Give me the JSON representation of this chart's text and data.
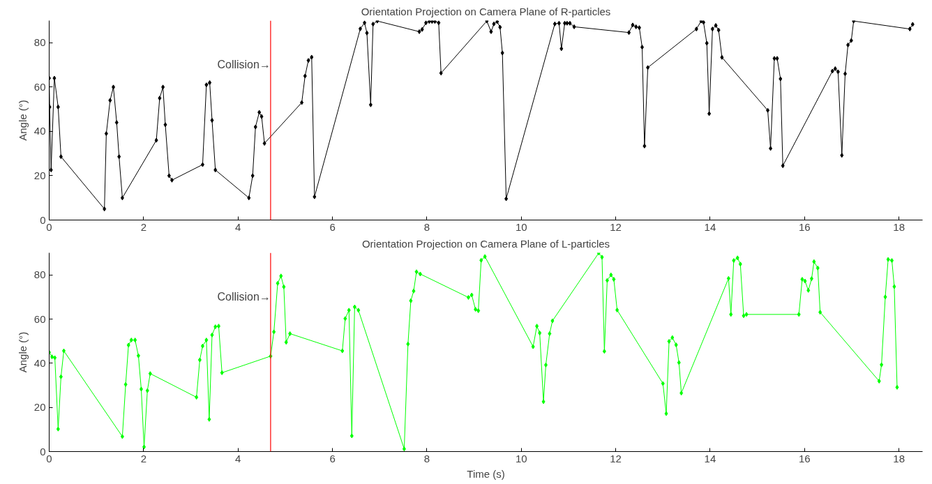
{
  "chart_data": [
    {
      "type": "line",
      "title": "Orientation Projection on Camera Plane of R-particles",
      "ylabel": "Angle (°)",
      "x": [
        0,
        0.01,
        0.04,
        0.11,
        0.19,
        0.25,
        1.17,
        1.21,
        1.29,
        1.36,
        1.43,
        1.48,
        1.55,
        2.27,
        2.34,
        2.41,
        2.46,
        2.54,
        2.6,
        3.25,
        3.33,
        3.4,
        3.45,
        3.52,
        4.23,
        4.31,
        4.37,
        4.45,
        4.5,
        4.56,
        5.35,
        5.42,
        5.49,
        5.56,
        5.62,
        6.59,
        6.68,
        6.73,
        6.81,
        6.86,
        6.95,
        7.84,
        7.9,
        7.98,
        8.05,
        8.11,
        8.17,
        8.25,
        8.3,
        9.27,
        9.36,
        9.42,
        9.49,
        9.55,
        9.6,
        9.68,
        10.71,
        10.8,
        10.85,
        10.92,
        10.97,
        11.03,
        11.12,
        12.28,
        12.36,
        12.43,
        12.5,
        12.56,
        12.61,
        12.68,
        13.71,
        13.81,
        13.86,
        13.93,
        13.98,
        14.05,
        14.12,
        14.18,
        14.25,
        15.22,
        15.28,
        15.36,
        15.42,
        15.49,
        15.54,
        16.59,
        16.65,
        16.71,
        16.79,
        16.86,
        16.92,
        16.99,
        17.04,
        18.23,
        18.29
      ],
      "series": [
        {
          "color": "#000000",
          "values": [
            64,
            51,
            22.6,
            64,
            51,
            28.6,
            5,
            39,
            54,
            60,
            44,
            28.6,
            10,
            36,
            55,
            60,
            43,
            20,
            18,
            25,
            61,
            62,
            45,
            22.6,
            10,
            20,
            42,
            48.6,
            46.7,
            34.6,
            53,
            65,
            72,
            73.5,
            10.5,
            86.3,
            89,
            84.4,
            52,
            88.4,
            89.8,
            85,
            86,
            89,
            89.6,
            89.6,
            89.6,
            89,
            66.3,
            89.8,
            85,
            88.5,
            89.5,
            87,
            75.4,
            9.6,
            88.5,
            88.8,
            77.3,
            88.8,
            88.8,
            88.8,
            87.2,
            84.6,
            88,
            87.2,
            86.8,
            78,
            33.4,
            68.8,
            86.2,
            89.8,
            89.2,
            79.8,
            48,
            86.2,
            87.8,
            85.7,
            73.4,
            49.5,
            32.3,
            72.9,
            72.9,
            63.7,
            24.5,
            67.2,
            68.3,
            66.9,
            29.2,
            66,
            79,
            81,
            89.8,
            86.2,
            88.3
          ]
        }
      ],
      "xlim": [
        0,
        18.5
      ],
      "ylim": [
        0,
        90
      ],
      "xticks": [
        0,
        2,
        4,
        6,
        8,
        10,
        12,
        14,
        16,
        18
      ],
      "yticks": [
        0,
        20,
        40,
        60,
        80
      ],
      "marker": "diamond",
      "grid": false,
      "ref_lines": [
        {
          "axis": "x",
          "value": 4.69,
          "label": "Collision→",
          "color": "#ff0000"
        }
      ]
    },
    {
      "type": "line",
      "title": "Orientation Projection on Camera Plane of L-particles",
      "ylabel": "Angle (°)",
      "xlabel": "Time (s)",
      "x": [
        0,
        0.06,
        0.12,
        0.19,
        0.25,
        0.31,
        1.55,
        1.62,
        1.68,
        1.74,
        1.82,
        1.89,
        1.95,
        2.01,
        2.08,
        2.14,
        3.12,
        3.19,
        3.25,
        3.33,
        3.39,
        3.45,
        3.52,
        3.59,
        3.66,
        4.69,
        4.76,
        4.84,
        4.91,
        4.97,
        5.02,
        5.1,
        6.21,
        6.27,
        6.35,
        6.41,
        6.47,
        6.55,
        7.52,
        7.6,
        7.66,
        7.72,
        7.78,
        7.86,
        8.88,
        8.95,
        9.03,
        9.09,
        9.15,
        9.23,
        10.25,
        10.33,
        10.39,
        10.47,
        10.52,
        10.6,
        10.66,
        11.64,
        11.71,
        11.76,
        11.82,
        11.9,
        11.96,
        12.03,
        13.0,
        13.07,
        13.13,
        13.2,
        13.28,
        13.34,
        13.39,
        14.39,
        14.44,
        14.5,
        14.58,
        14.64,
        14.71,
        14.77,
        15.88,
        15.95,
        16.01,
        16.08,
        16.15,
        16.2,
        16.28,
        16.33,
        17.58,
        17.63,
        17.71,
        17.77,
        17.85,
        17.9,
        17.96
      ],
      "series": [
        {
          "color": "#00ff00",
          "values": [
            44.9,
            42.9,
            42.5,
            10.2,
            33.9,
            45.6,
            6.8,
            30.4,
            48.2,
            50.5,
            50.5,
            43.4,
            28.3,
            2.1,
            27.6,
            35.3,
            24.6,
            41.5,
            47.8,
            50.5,
            14.6,
            52.8,
            56.5,
            56.8,
            35.7,
            43.2,
            54.2,
            76.2,
            79.5,
            74.6,
            49.5,
            53.4,
            45.6,
            60.2,
            64,
            7.1,
            65.5,
            64,
            1.2,
            48.7,
            68.3,
            72.7,
            81.4,
            80.4,
            69.8,
            70.9,
            64.4,
            63.8,
            86.6,
            88.3,
            47.5,
            56.8,
            53.7,
            22.6,
            39.2,
            53.4,
            59.2,
            89.9,
            88,
            45.4,
            77.5,
            80,
            78,
            64.1,
            30.8,
            17.2,
            49.9,
            51.6,
            48.3,
            40.3,
            26.5,
            78.4,
            62.1,
            86.5,
            87.7,
            84.9,
            61.5,
            62.1,
            62.1,
            78,
            77.2,
            73,
            78.3,
            86,
            83.1,
            63.1,
            31.9,
            39.3,
            70,
            87,
            86.5,
            74.7,
            29.1
          ]
        }
      ],
      "xlim": [
        0,
        18.5
      ],
      "ylim": [
        0,
        90
      ],
      "xticks": [
        0,
        2,
        4,
        6,
        8,
        10,
        12,
        14,
        16,
        18
      ],
      "yticks": [
        0,
        20,
        40,
        60,
        80
      ],
      "marker": "diamond",
      "grid": false,
      "ref_lines": [
        {
          "axis": "x",
          "value": 4.69,
          "label": "Collision→",
          "color": "#ff0000"
        }
      ]
    }
  ]
}
